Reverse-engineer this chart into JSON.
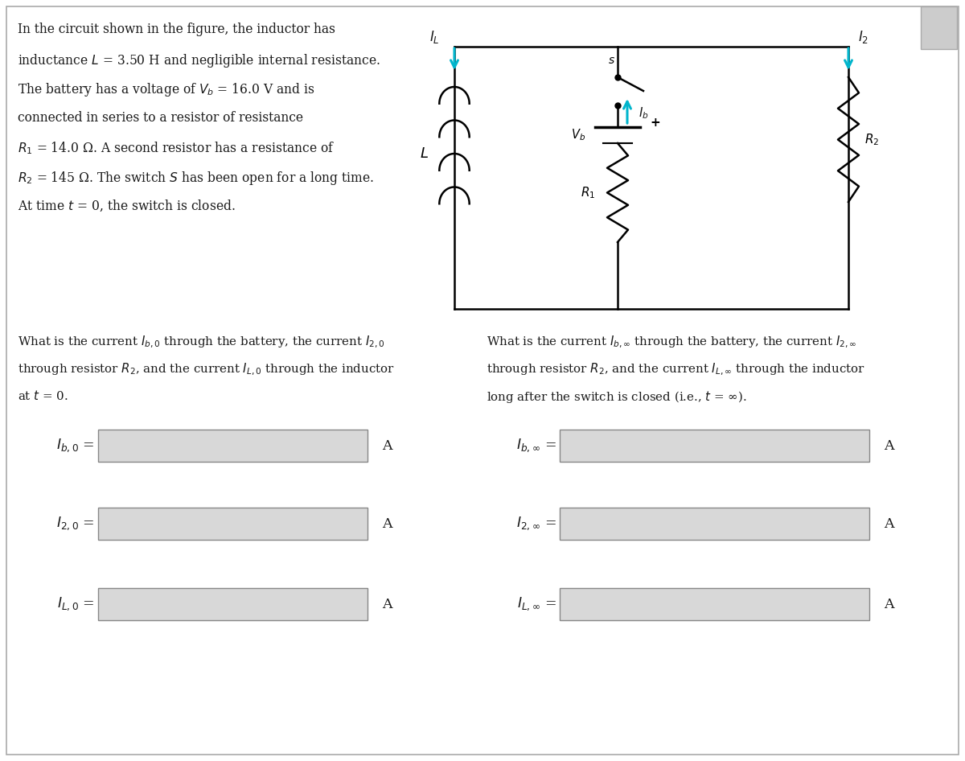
{
  "bg_color": "#ffffff",
  "border_color": "#aaaaaa",
  "text_color": "#1a1a1a",
  "cyan_color": "#00b5cc",
  "circuit_line_color": "#000000",
  "box_fill_color": "#d8d8d8",
  "box_edge_color": "#888888",
  "description_lines": [
    "In the circuit shown in the figure, the inductor has",
    "inductance $L$ = 3.50 H and negligible internal resistance.",
    "The battery has a voltage of $V_b$ = 16.0 V and is",
    "connected in series to a resistor of resistance",
    "$R_1$ = 14.0 Ω. A second resistor has a resistance of",
    "$R_2$ = 145 Ω. The switch $S$ has been open for a long time.",
    "At time $t$ = 0, the switch is closed."
  ],
  "q_left_lines": [
    "What is the current $I_{b,0}$ through the battery, the current $I_{2,0}$",
    "through resistor $R_2$, and the current $I_{L,0}$ through the inductor",
    "at $t$ = 0."
  ],
  "q_right_lines": [
    "What is the current $I_{b,\\infty}$ through the battery, the current $I_{2,\\infty}$",
    "through resistor $R_2$, and the current $I_{L,\\infty}$ through the inductor",
    "long after the switch is closed (i.e., $t$ = ∞)."
  ],
  "labels_left": [
    "$I_{b,0}$ =",
    "$I_{2,0}$ =",
    "$I_{L,0}$ ="
  ],
  "labels_right": [
    "$I_{b,\\infty}$ =",
    "$I_{2,\\infty}$ =",
    "$I_{L,\\infty}$ ="
  ],
  "unit": "A",
  "figwidth": 12.0,
  "figheight": 9.46
}
